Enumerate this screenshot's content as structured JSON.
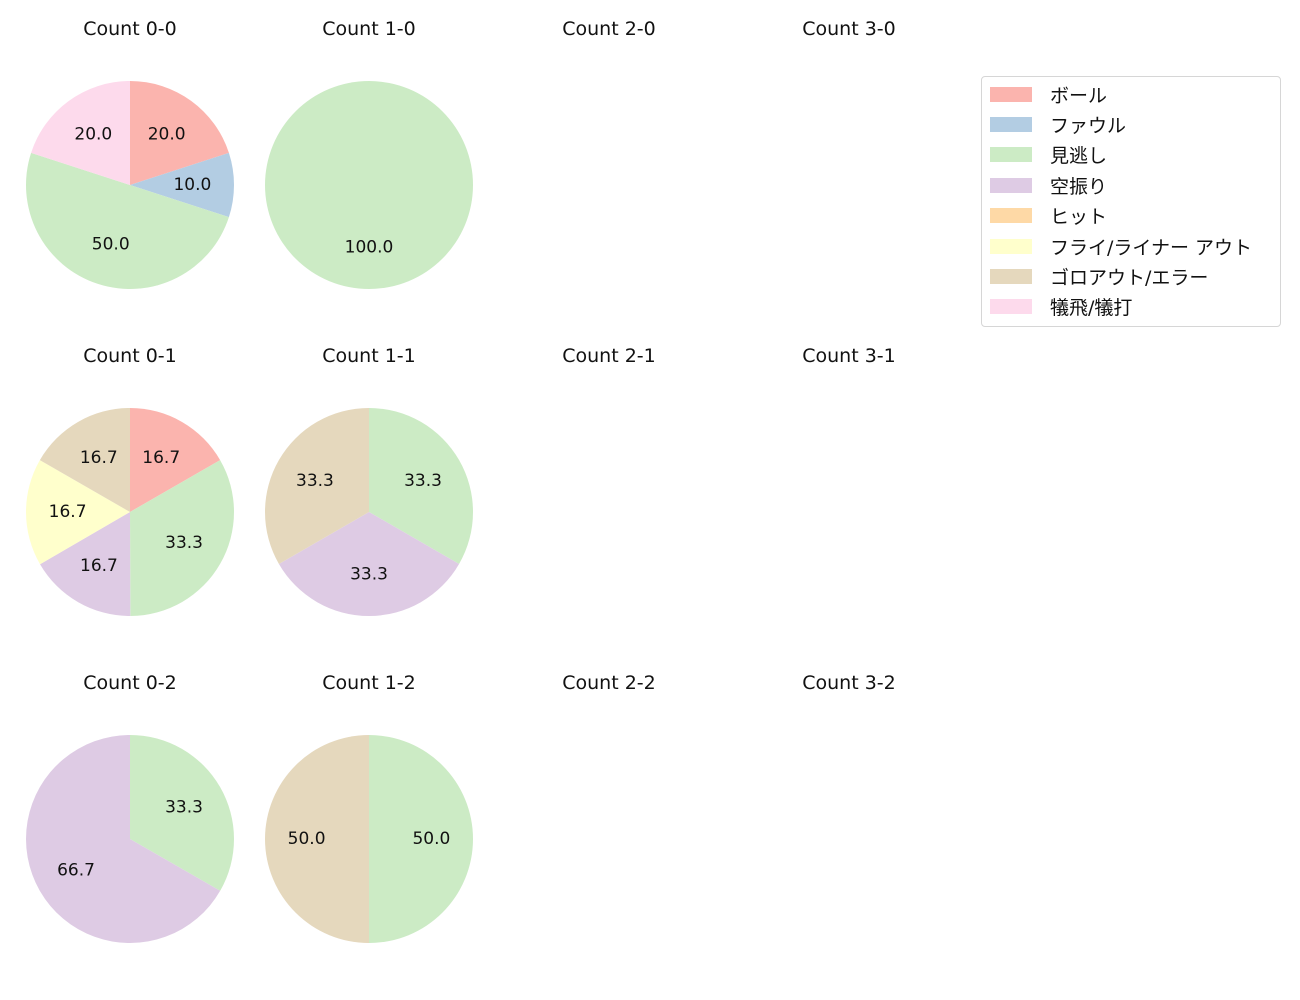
{
  "chart_data": {
    "type": "pie",
    "title": "",
    "legend": {
      "position": "upper right",
      "entries": [
        {
          "label": "ボール",
          "color": "#fbb4ae"
        },
        {
          "label": "ファウル",
          "color": "#b3cde3"
        },
        {
          "label": "見逃し",
          "color": "#ccebc5"
        },
        {
          "label": "空振り",
          "color": "#decbe4"
        },
        {
          "label": "ヒット",
          "color": "#fed9a6"
        },
        {
          "label": "フライ/ライナー アウト",
          "color": "#ffffcc"
        },
        {
          "label": "ゴロアウト/エラー",
          "color": "#e5d8bd"
        },
        {
          "label": "犠飛/犠打",
          "color": "#fddaec"
        }
      ]
    },
    "subplots": [
      {
        "title": "Count 0-0",
        "slices": [
          {
            "label": "ボール",
            "value": 20.0
          },
          {
            "label": "ファウル",
            "value": 10.0
          },
          {
            "label": "見逃し",
            "value": 50.0
          },
          {
            "label": "犠飛/犠打",
            "value": 20.0
          }
        ]
      },
      {
        "title": "Count 1-0",
        "slices": [
          {
            "label": "見逃し",
            "value": 100.0
          }
        ]
      },
      {
        "title": "Count 2-0",
        "slices": []
      },
      {
        "title": "Count 3-0",
        "slices": []
      },
      {
        "title": "Count 0-1",
        "slices": [
          {
            "label": "ボール",
            "value": 16.7
          },
          {
            "label": "見逃し",
            "value": 33.3
          },
          {
            "label": "空振り",
            "value": 16.7
          },
          {
            "label": "フライ/ライナー アウト",
            "value": 16.7
          },
          {
            "label": "ゴロアウト/エラー",
            "value": 16.7
          }
        ]
      },
      {
        "title": "Count 1-1",
        "slices": [
          {
            "label": "見逃し",
            "value": 33.3
          },
          {
            "label": "空振り",
            "value": 33.3
          },
          {
            "label": "ゴロアウト/エラー",
            "value": 33.3
          }
        ]
      },
      {
        "title": "Count 2-1",
        "slices": []
      },
      {
        "title": "Count 3-1",
        "slices": []
      },
      {
        "title": "Count 0-2",
        "slices": [
          {
            "label": "見逃し",
            "value": 33.3
          },
          {
            "label": "空振り",
            "value": 66.7
          }
        ]
      },
      {
        "title": "Count 1-2",
        "slices": [
          {
            "label": "見逃し",
            "value": 50.0
          },
          {
            "label": "ゴロアウト/エラー",
            "value": 50.0
          }
        ]
      },
      {
        "title": "Count 2-2",
        "slices": []
      },
      {
        "title": "Count 3-2",
        "slices": []
      }
    ]
  }
}
